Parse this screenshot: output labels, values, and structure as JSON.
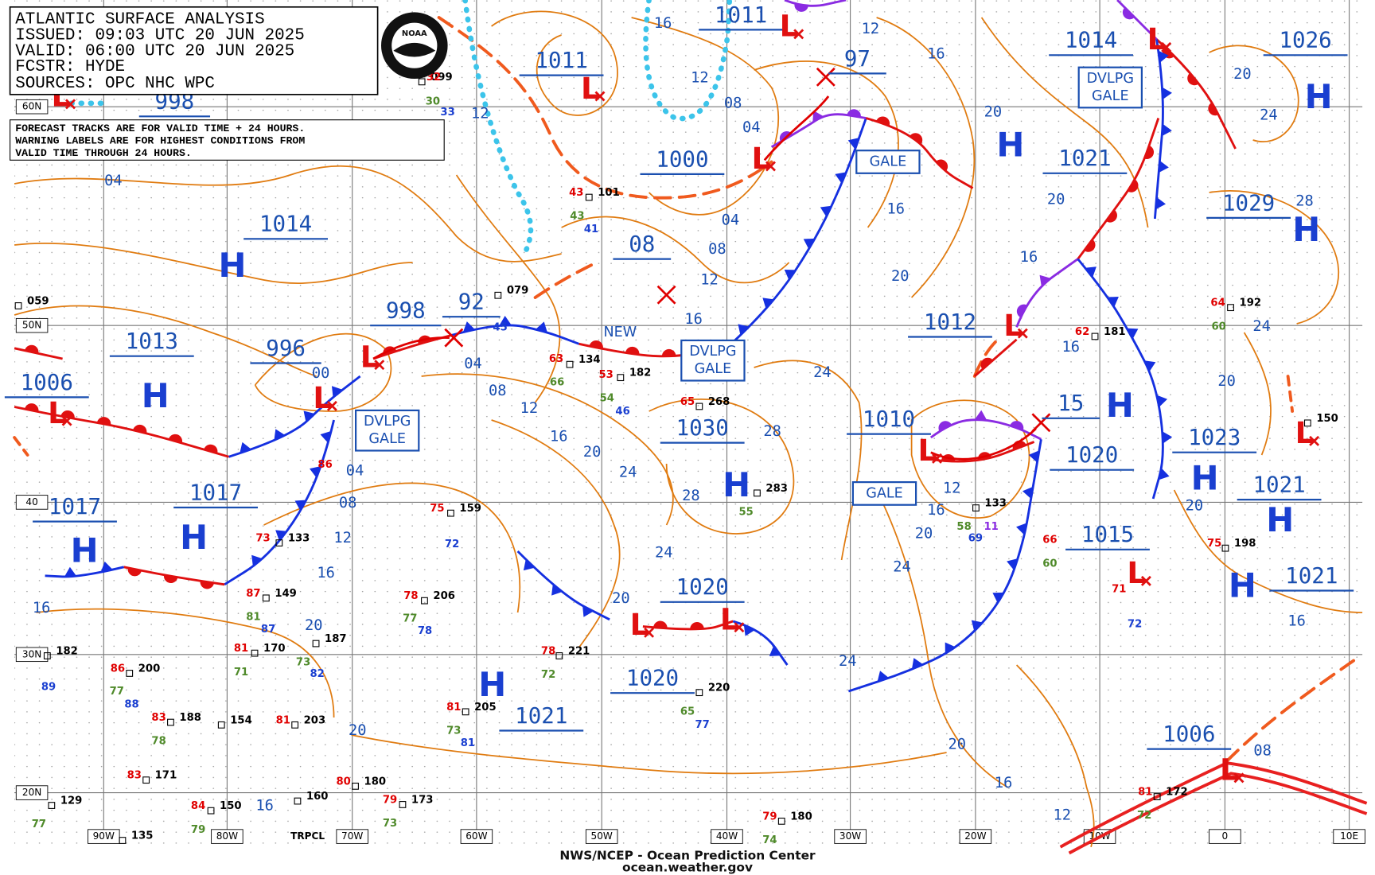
{
  "header": {
    "title": "ATLANTIC SURFACE ANALYSIS",
    "lines": [
      "ISSUED: 09:03 UTC 20 JUN 2025",
      "VALID:  06:00 UTC 20 JUN 2025",
      "FCSTR:  HYDE",
      "SOURCES: OPC NHC WPC"
    ]
  },
  "logo": "NOAA",
  "notice": [
    "FORECAST TRACKS ARE FOR VALID TIME + 24 HOURS.",
    "WARNING LABELS ARE FOR HIGHEST CONDITIONS FROM",
    "VALID TIME THROUGH 24 HOURS."
  ],
  "footer": [
    "NWS/NCEP - Ocean Prediction Center",
    "ocean.weather.gov"
  ],
  "lat_labels": [
    "60N",
    "50N",
    "40",
    "30N",
    "20N"
  ],
  "lon_labels": [
    "90W",
    "80W",
    "70W",
    "60W",
    "50W",
    "40W",
    "30W",
    "20W",
    "10W",
    "0",
    "10E"
  ],
  "region_label": "TRPCL",
  "high_symbol": "H",
  "low_symbol": "L",
  "new_label": "NEW",
  "warnings": [
    [
      "GALE"
    ],
    [
      "GALE"
    ],
    [
      "DVLPG",
      "GALE"
    ],
    [
      "DVLPG",
      "GALE"
    ],
    [
      "DVLPG",
      "GALE"
    ]
  ],
  "pressure_labels": [
    "1011",
    "1011",
    "1014",
    "1026",
    "97",
    "1000",
    "1021",
    "1029",
    "1014",
    "08",
    "998",
    "92",
    "996",
    "1013",
    "1006",
    "1012",
    "1010",
    "15",
    "1030",
    "1020",
    "1023",
    "1021",
    "1017",
    "1017",
    "1015",
    "1020",
    "1021",
    "1020",
    "1021",
    "1006",
    "998"
  ],
  "isobar_labels": [
    "04",
    "16",
    "12",
    "16",
    "12",
    "08",
    "04",
    "12",
    "04",
    "08",
    "12",
    "16",
    "20",
    "20",
    "16",
    "16",
    "20",
    "24",
    "24",
    "20",
    "24",
    "20",
    "28",
    "00",
    "04",
    "08",
    "12",
    "16",
    "20",
    "24",
    "28",
    "28",
    "24",
    "20",
    "04",
    "08",
    "12",
    "16",
    "20",
    "16",
    "12",
    "16",
    "20",
    "24",
    "24",
    "20",
    "16",
    "20",
    "20",
    "16",
    "12",
    "08",
    "16",
    "16"
  ],
  "stations": [
    {
      "text": "099",
      "color": "#000000"
    },
    {
      "text": "32",
      "color": "#e00000"
    },
    {
      "text": "30",
      "color": "#4f8a2a"
    },
    {
      "text": "33",
      "color": "#1a3fd0"
    },
    {
      "text": "101",
      "color": "#000000"
    },
    {
      "text": "43",
      "color": "#e00000"
    },
    {
      "text": "43",
      "color": "#4f8a2a"
    },
    {
      "text": "41",
      "color": "#1a3fd0"
    },
    {
      "text": "059",
      "color": "#000000"
    },
    {
      "text": "079",
      "color": "#000000"
    },
    {
      "text": "134",
      "color": "#000000"
    },
    {
      "text": "182",
      "color": "#000000"
    },
    {
      "text": "54",
      "color": "#4f8a2a"
    },
    {
      "text": "46",
      "color": "#1a3fd0"
    },
    {
      "text": "268",
      "color": "#000000"
    },
    {
      "text": "65",
      "color": "#e00000"
    },
    {
      "text": "283",
      "color": "#000000"
    },
    {
      "text": "55",
      "color": "#4f8a2a"
    },
    {
      "text": "159",
      "color": "#000000"
    },
    {
      "text": "75",
      "color": "#e00000"
    },
    {
      "text": "72",
      "color": "#1a3fd0"
    },
    {
      "text": "206",
      "color": "#000000"
    },
    {
      "text": "78",
      "color": "#e00000"
    },
    {
      "text": "77",
      "color": "#4f8a2a"
    },
    {
      "text": "78",
      "color": "#1a3fd0"
    },
    {
      "text": "133",
      "color": "#000000"
    },
    {
      "text": "58",
      "color": "#4f8a2a"
    },
    {
      "text": "11",
      "color": "#8a2be2"
    },
    {
      "text": "69",
      "color": "#1a3fd0"
    },
    {
      "text": "181",
      "color": "#000000"
    },
    {
      "text": "62",
      "color": "#e00000"
    },
    {
      "text": "192",
      "color": "#000000"
    },
    {
      "text": "64",
      "color": "#e00000"
    },
    {
      "text": "60",
      "color": "#4f8a2a"
    },
    {
      "text": "150",
      "color": "#000000"
    },
    {
      "text": "198",
      "color": "#000000"
    },
    {
      "text": "75",
      "color": "#e00000"
    },
    {
      "text": "221",
      "color": "#000000"
    },
    {
      "text": "78",
      "color": "#e00000"
    },
    {
      "text": "72",
      "color": "#4f8a2a"
    },
    {
      "text": "220",
      "color": "#000000"
    },
    {
      "text": "65",
      "color": "#4f8a2a"
    },
    {
      "text": "77",
      "color": "#1a3fd0"
    },
    {
      "text": "205",
      "color": "#000000"
    },
    {
      "text": "81",
      "color": "#e00000"
    },
    {
      "text": "73",
      "color": "#4f8a2a"
    },
    {
      "text": "81",
      "color": "#1a3fd0"
    },
    {
      "text": "182",
      "color": "#000000"
    },
    {
      "text": "89",
      "color": "#1a3fd0"
    },
    {
      "text": "200",
      "color": "#000000"
    },
    {
      "text": "86",
      "color": "#e00000"
    },
    {
      "text": "77",
      "color": "#4f8a2a"
    },
    {
      "text": "88",
      "color": "#1a3fd0"
    },
    {
      "text": "170",
      "color": "#000000"
    },
    {
      "text": "81",
      "color": "#e00000"
    },
    {
      "text": "71",
      "color": "#4f8a2a"
    },
    {
      "text": "187",
      "color": "#000000"
    },
    {
      "text": "73",
      "color": "#4f8a2a"
    },
    {
      "text": "82",
      "color": "#1a3fd0"
    },
    {
      "text": "149",
      "color": "#000000"
    },
    {
      "text": "87",
      "color": "#e00000"
    },
    {
      "text": "81",
      "color": "#4f8a2a"
    },
    {
      "text": "87",
      "color": "#1a3fd0"
    },
    {
      "text": "133",
      "color": "#000000"
    },
    {
      "text": "73",
      "color": "#e00000"
    },
    {
      "text": "188",
      "color": "#000000"
    },
    {
      "text": "83",
      "color": "#e00000"
    },
    {
      "text": "78",
      "color": "#4f8a2a"
    },
    {
      "text": "154",
      "color": "#000000"
    },
    {
      "text": "203",
      "color": "#000000"
    },
    {
      "text": "81",
      "color": "#e00000"
    },
    {
      "text": "171",
      "color": "#000000"
    },
    {
      "text": "83",
      "color": "#e00000"
    },
    {
      "text": "150",
      "color": "#000000"
    },
    {
      "text": "84",
      "color": "#e00000"
    },
    {
      "text": "79",
      "color": "#4f8a2a"
    },
    {
      "text": "129",
      "color": "#000000"
    },
    {
      "text": "77",
      "color": "#4f8a2a"
    },
    {
      "text": "135",
      "color": "#000000"
    },
    {
      "text": "160",
      "color": "#000000"
    },
    {
      "text": "180",
      "color": "#000000"
    },
    {
      "text": "80",
      "color": "#e00000"
    },
    {
      "text": "173",
      "color": "#000000"
    },
    {
      "text": "79",
      "color": "#e00000"
    },
    {
      "text": "73",
      "color": "#4f8a2a"
    },
    {
      "text": "180",
      "color": "#000000"
    },
    {
      "text": "79",
      "color": "#e00000"
    },
    {
      "text": "74",
      "color": "#4f8a2a"
    },
    {
      "text": "172",
      "color": "#000000"
    },
    {
      "text": "81",
      "color": "#e00000"
    },
    {
      "text": "72",
      "color": "#4f8a2a"
    },
    {
      "text": "66",
      "color": "#e00000"
    },
    {
      "text": "60",
      "color": "#4f8a2a"
    },
    {
      "text": "71",
      "color": "#e00000"
    },
    {
      "text": "72",
      "color": "#1a3fd0"
    },
    {
      "text": "63",
      "color": "#e00000"
    },
    {
      "text": "53",
      "color": "#e00000"
    },
    {
      "text": "66",
      "color": "#4f8a2a"
    },
    {
      "text": "45",
      "color": "#1a3fd0"
    },
    {
      "text": "86",
      "color": "#e00000"
    }
  ]
}
